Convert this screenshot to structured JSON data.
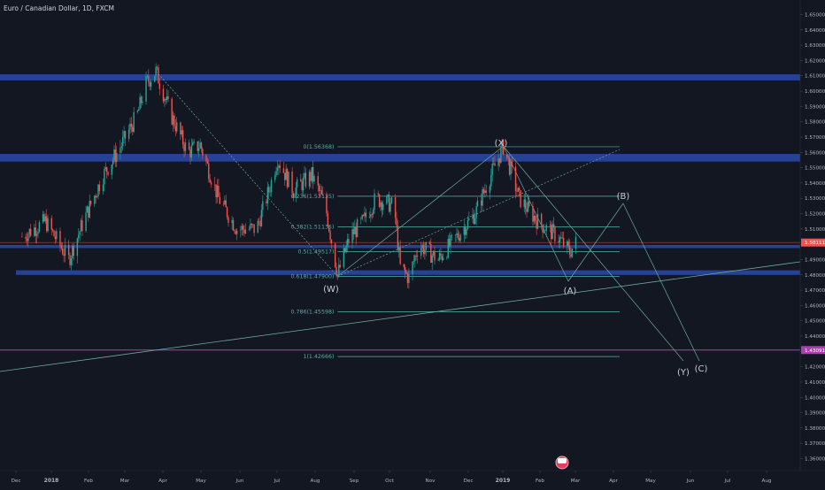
{
  "chart_title": "Euro / Canadian Dollar, 1D, FXCM",
  "colors": {
    "background": "#131722",
    "up_candle": "#26a69a",
    "down_candle": "#ef5350",
    "zone": "#2a4aa8",
    "fib": "#4fb3a9",
    "trend": "#6ea8a0",
    "magenta": "#b33ab3",
    "current_price": "#ef5350"
  },
  "chart_data": {
    "type": "candlestick",
    "title": "Euro / Canadian Dollar, 1D, FXCM",
    "symbol": "EURCAD",
    "interval": "1D",
    "source": "FXCM",
    "ylim": [
      1.355,
      1.66
    ],
    "y_ticks": [
      "1.65000",
      "1.64000",
      "1.63000",
      "1.62000",
      "1.61000",
      "1.60000",
      "1.59000",
      "1.58000",
      "1.57000",
      "1.56000",
      "1.55000",
      "1.54000",
      "1.53000",
      "1.52000",
      "1.51000",
      "1.50000",
      "1.49000",
      "1.48000",
      "1.47000",
      "1.46000",
      "1.45000",
      "1.44000",
      "1.43000",
      "1.42000",
      "1.41000",
      "1.40000",
      "1.39000",
      "1.38000",
      "1.37000",
      "1.36000"
    ],
    "x_ticks": [
      {
        "label": "Dec",
        "bold": false
      },
      {
        "label": "2018",
        "bold": true
      },
      {
        "label": "Feb",
        "bold": false
      },
      {
        "label": "Mar",
        "bold": false
      },
      {
        "label": "Apr",
        "bold": false
      },
      {
        "label": "May",
        "bold": false
      },
      {
        "label": "Jun",
        "bold": false
      },
      {
        "label": "Jul",
        "bold": false
      },
      {
        "label": "Aug",
        "bold": false
      },
      {
        "label": "Sep",
        "bold": false
      },
      {
        "label": "Oct",
        "bold": false
      },
      {
        "label": "Nov",
        "bold": false
      },
      {
        "label": "Dec",
        "bold": false
      },
      {
        "label": "2019",
        "bold": true
      },
      {
        "label": "Feb",
        "bold": false
      },
      {
        "label": "Mar",
        "bold": false
      },
      {
        "label": "Apr",
        "bold": false
      },
      {
        "label": "May",
        "bold": false
      },
      {
        "label": "Jun",
        "bold": false
      },
      {
        "label": "Jul",
        "bold": false
      },
      {
        "label": "Aug",
        "bold": false
      }
    ],
    "price_path": [
      [
        "2017-12-01",
        1.505
      ],
      [
        "2017-12-20",
        1.515
      ],
      [
        "2018-01-08",
        1.49
      ],
      [
        "2018-01-20",
        1.515
      ],
      [
        "2018-02-05",
        1.545
      ],
      [
        "2018-02-20",
        1.565
      ],
      [
        "2018-03-05",
        1.585
      ],
      [
        "2018-03-12",
        1.605
      ],
      [
        "2018-03-20",
        1.613
      ],
      [
        "2018-04-01",
        1.585
      ],
      [
        "2018-04-15",
        1.56
      ],
      [
        "2018-04-25",
        1.565
      ],
      [
        "2018-05-10",
        1.53
      ],
      [
        "2018-05-25",
        1.51
      ],
      [
        "2018-06-10",
        1.51
      ],
      [
        "2018-06-20",
        1.535
      ],
      [
        "2018-06-27",
        1.556
      ],
      [
        "2018-07-10",
        1.535
      ],
      [
        "2018-07-25",
        1.545
      ],
      [
        "2018-08-05",
        1.525
      ],
      [
        "2018-08-15",
        1.48
      ],
      [
        "2018-08-25",
        1.505
      ],
      [
        "2018-09-05",
        1.515
      ],
      [
        "2018-09-15",
        1.53
      ],
      [
        "2018-09-30",
        1.525
      ],
      [
        "2018-10-05",
        1.485
      ],
      [
        "2018-10-12",
        1.478
      ],
      [
        "2018-10-20",
        1.5
      ],
      [
        "2018-11-05",
        1.49
      ],
      [
        "2018-11-20",
        1.505
      ],
      [
        "2018-12-05",
        1.52
      ],
      [
        "2018-12-15",
        1.54
      ],
      [
        "2018-12-28",
        1.564
      ],
      [
        "2019-01-10",
        1.53
      ],
      [
        "2019-01-25",
        1.515
      ],
      [
        "2019-02-10",
        1.505
      ],
      [
        "2019-02-20",
        1.495
      ],
      [
        "2019-02-25",
        1.501
      ]
    ],
    "horizontal_zones": [
      {
        "low": 1.607,
        "high": 1.611
      },
      {
        "low": 1.554,
        "high": 1.559
      },
      {
        "low": 1.4975,
        "high": 1.4995
      },
      {
        "low": 1.48,
        "high": 1.483
      }
    ],
    "fibonacci": [
      {
        "label": "0(1.56368)",
        "value": 1.56368
      },
      {
        "label": "0.236(1.53135)",
        "value": 1.53135
      },
      {
        "label": "0.382(1.51135)",
        "value": 1.51135
      },
      {
        "label": "0.5(1.49517)",
        "value": 1.49517
      },
      {
        "label": "0.618(1.47900)",
        "value": 1.479
      },
      {
        "label": "0.786(1.45598)",
        "value": 1.45598
      },
      {
        "label": "1(1.42666)",
        "value": 1.42666
      }
    ],
    "wave_labels": [
      {
        "label": "(W)",
        "date": "2018-08-15",
        "price": 1.479
      },
      {
        "label": "(X)",
        "date": "2018-12-28",
        "price": 1.564
      },
      {
        "label": "(B)",
        "date": "2019-04-05",
        "price": 1.53
      },
      {
        "label": "(A)",
        "date": "2019-03-01",
        "price": 1.475
      },
      {
        "label": "(Y)",
        "date": "2019-05-20",
        "price": 1.42
      },
      {
        "label": "(C)",
        "date": "2019-06-05",
        "price": 1.425
      }
    ],
    "current_price": {
      "label": "1.50111",
      "value": 1.50111
    },
    "support_line": {
      "label": "1.43091",
      "value": 1.4309
    }
  }
}
